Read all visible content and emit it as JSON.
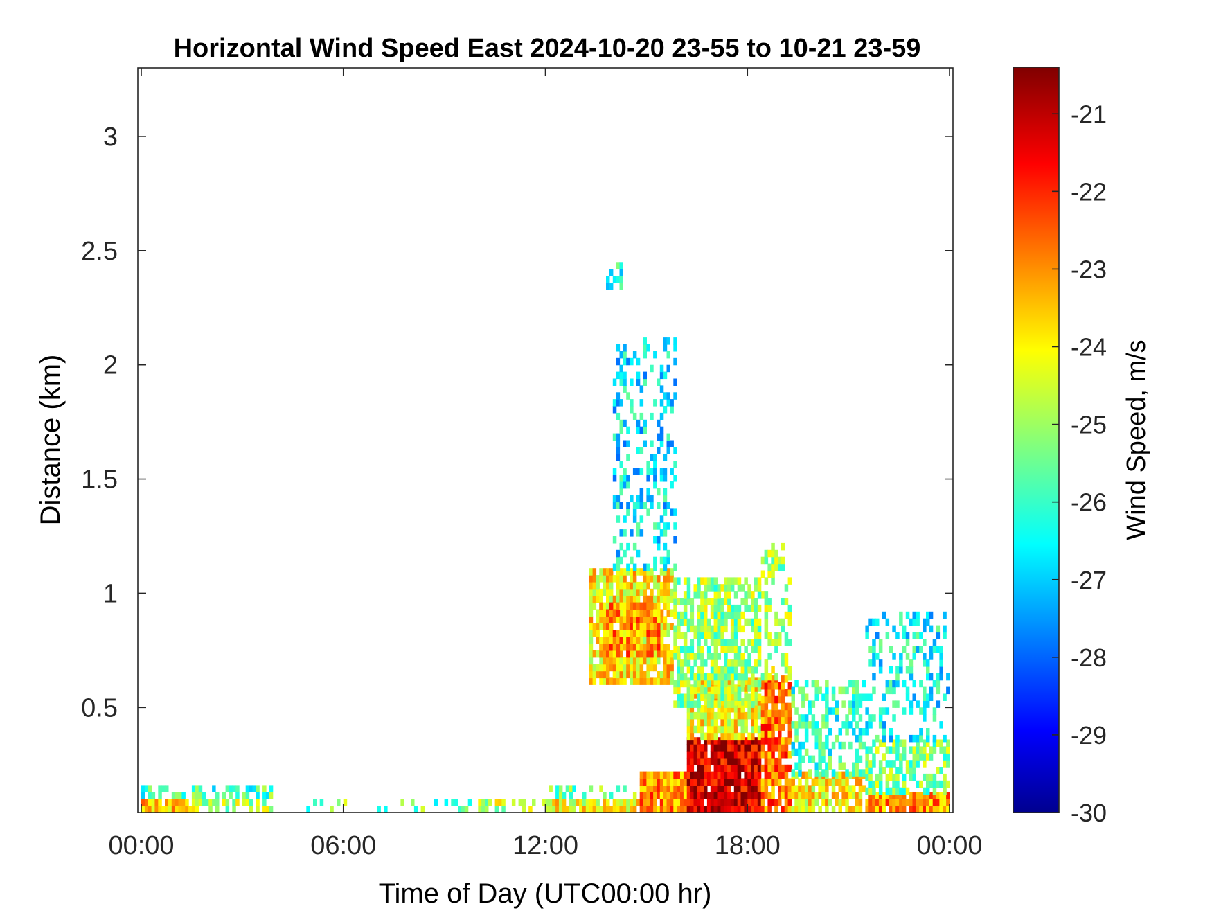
{
  "chart_data": {
    "type": "heatmap",
    "title": "Horizontal Wind Speed East 2024-10-20 23-55 to 10-21 23-59",
    "xlabel": "Time of Day (UTC00:00 hr)",
    "ylabel": "Distance (km)",
    "colorbar_label": "Wind Speed, m/s",
    "x_ticks": [
      "00:00",
      "06:00",
      "12:00",
      "18:00",
      "00:00"
    ],
    "x_range_hours": [
      0,
      24
    ],
    "y_ticks": [
      0.5,
      1,
      1.5,
      2,
      2.5,
      3
    ],
    "y_tick_labels": [
      "0.5",
      "1",
      "1.5",
      "2",
      "2.5",
      "3"
    ],
    "ylim": [
      0.04,
      3.3
    ],
    "colorbar_ticks": [
      -21,
      -22,
      -23,
      -24,
      -25,
      -26,
      -27,
      -28,
      -29,
      -30
    ],
    "colorbar_tick_labels": [
      "-21",
      "-22",
      "-23",
      "-24",
      "-25",
      "-26",
      "-27",
      "-28",
      "-29",
      "-30"
    ],
    "clim": [
      -30,
      -20.4
    ],
    "colormap": "jet",
    "grid": false,
    "regions": [
      {
        "x_hours": [
          0.0,
          1.5
        ],
        "y_km": [
          0.04,
          0.1
        ],
        "speed": -23.6,
        "density": 0.9
      },
      {
        "x_hours": [
          0.0,
          3.9
        ],
        "y_km": [
          0.1,
          0.14
        ],
        "speed": -25.7,
        "density": 0.55
      },
      {
        "x_hours": [
          1.5,
          3.9
        ],
        "y_km": [
          0.04,
          0.1
        ],
        "speed": -24.8,
        "density": 0.6
      },
      {
        "x_hours": [
          4.5,
          10.0
        ],
        "y_km": [
          0.04,
          0.09
        ],
        "speed": -25.4,
        "density": 0.18
      },
      {
        "x_hours": [
          10.0,
          12.0
        ],
        "y_km": [
          0.04,
          0.1
        ],
        "speed": -24.6,
        "density": 0.45
      },
      {
        "x_hours": [
          12.0,
          14.8
        ],
        "y_km": [
          0.04,
          0.1
        ],
        "speed": -24.0,
        "density": 0.85
      },
      {
        "x_hours": [
          12.0,
          14.8
        ],
        "y_km": [
          0.1,
          0.14
        ],
        "speed": -25.5,
        "density": 0.45
      },
      {
        "x_hours": [
          14.8,
          16.2
        ],
        "y_km": [
          0.04,
          0.22
        ],
        "speed": -22.8,
        "density": 0.95
      },
      {
        "x_hours": [
          16.2,
          18.4
        ],
        "y_km": [
          0.04,
          0.36
        ],
        "speed": -21.2,
        "density": 0.95
      },
      {
        "x_hours": [
          16.2,
          18.4
        ],
        "y_km": [
          0.36,
          0.62
        ],
        "speed": -24.0,
        "density": 0.85
      },
      {
        "x_hours": [
          18.4,
          19.3
        ],
        "y_km": [
          0.04,
          0.62
        ],
        "speed": -22.6,
        "density": 0.85
      },
      {
        "x_hours": [
          18.4,
          19.3
        ],
        "y_km": [
          0.62,
          1.2
        ],
        "speed": -24.8,
        "density": 0.4
      },
      {
        "x_hours": [
          19.3,
          21.5
        ],
        "y_km": [
          0.04,
          0.2
        ],
        "speed": -24.0,
        "density": 0.8
      },
      {
        "x_hours": [
          19.3,
          21.5
        ],
        "y_km": [
          0.2,
          0.6
        ],
        "speed": -25.9,
        "density": 0.5
      },
      {
        "x_hours": [
          21.5,
          24.0
        ],
        "y_km": [
          0.04,
          0.12
        ],
        "speed": -22.9,
        "density": 0.95
      },
      {
        "x_hours": [
          21.5,
          24.0
        ],
        "y_km": [
          0.12,
          0.35
        ],
        "speed": -25.2,
        "density": 0.6
      },
      {
        "x_hours": [
          21.5,
          24.0
        ],
        "y_km": [
          0.35,
          0.9
        ],
        "speed": -26.4,
        "density": 0.3
      },
      {
        "x_hours": [
          13.3,
          15.8
        ],
        "y_km": [
          0.6,
          1.1
        ],
        "speed": -23.8,
        "density": 0.85
      },
      {
        "x_hours": [
          13.6,
          15.4
        ],
        "y_km": [
          0.72,
          0.95
        ],
        "speed": -22.9,
        "density": 0.9
      },
      {
        "x_hours": [
          15.8,
          18.4
        ],
        "y_km": [
          0.5,
          1.05
        ],
        "speed": -25.0,
        "density": 0.7
      },
      {
        "x_hours": [
          14.0,
          15.9
        ],
        "y_km": [
          1.1,
          2.1
        ],
        "speed": -26.6,
        "density": 0.28
      },
      {
        "x_hours": [
          13.8,
          14.3
        ],
        "y_km": [
          2.33,
          2.43
        ],
        "speed": -26.3,
        "density": 0.5
      }
    ]
  }
}
